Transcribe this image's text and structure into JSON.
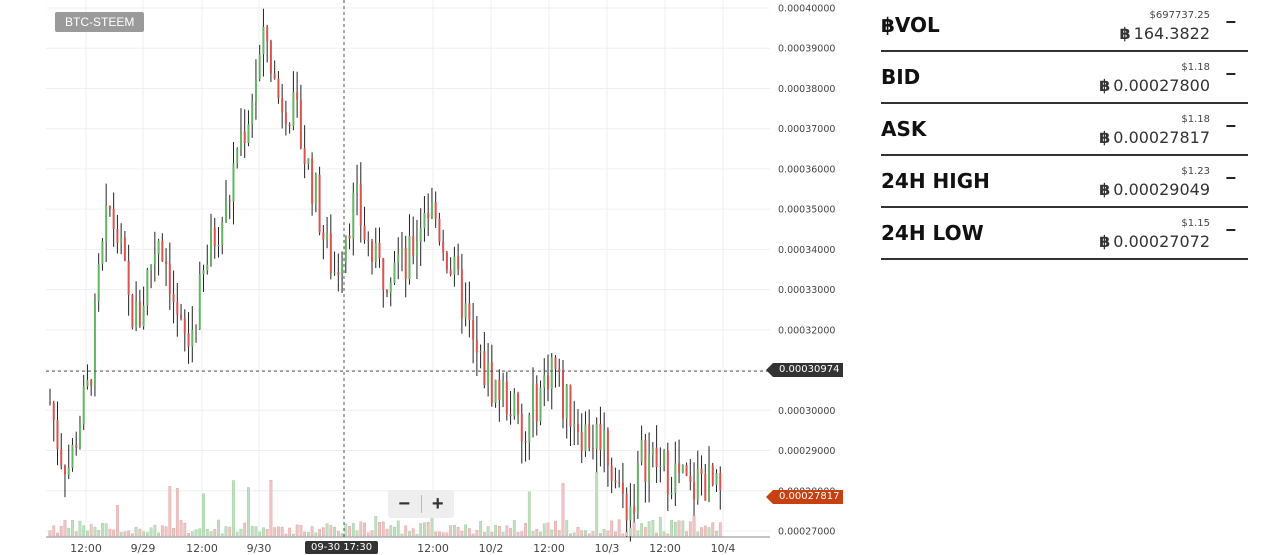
{
  "chart": {
    "pair_label": "BTC-STEEM",
    "crosshair_price": "0.00030974",
    "last_price": "0.00027817",
    "crosshair_time": "09-30 17:30",
    "zoom_out_label": "−",
    "zoom_in_label": "+",
    "colors": {
      "up": "#66b266",
      "down": "#d9534f",
      "wick": "#222222",
      "grid": "#efefef",
      "vol_up": "#bfe0bf",
      "vol_down": "#f0c4c4",
      "last": "#c8400f"
    }
  },
  "chart_data": {
    "type": "candlestick",
    "title": "",
    "x_ticks": [
      "12:00",
      "9/29",
      "12:00",
      "9/30",
      "12:00",
      "10/2",
      "12:00",
      "10/3",
      "12:00",
      "10/4"
    ],
    "y_ticks": [
      "0.00040000",
      "0.00039000",
      "0.00038000",
      "0.00037000",
      "0.00036000",
      "0.00035000",
      "0.00034000",
      "0.00033000",
      "0.00032000",
      "0.00031000",
      "0.00030000",
      "0.00029000",
      "0.00028000",
      "0.00027000"
    ],
    "ylim": [
      0.00027,
      0.0004
    ],
    "close_path": [
      0.000302,
      0.00029,
      0.000286,
      0.000298,
      0.000306,
      0.000334,
      0.00035,
      0.000342,
      0.000326,
      0.000322,
      0.000335,
      0.000344,
      0.000336,
      0.00032,
      0.000316,
      0.000326,
      0.000338,
      0.000346,
      0.00035,
      0.000366,
      0.000372,
      0.000385,
      0.000393,
      0.000378,
      0.000377,
      0.000372,
      0.000362,
      0.000353,
      0.00034,
      0.000334,
      0.000346,
      0.000352,
      0.000343,
      0.000336,
      0.000334,
      0.00034,
      0.000334,
      0.000342,
      0.000351,
      0.000349,
      0.000341,
      0.000333,
      0.000326,
      0.000314,
      0.00031,
      0.000306,
      0.000304,
      0.000301,
      0.000289,
      0.000301,
      0.000306,
      0.000313,
      0.000302,
      0.0003,
      0.000295,
      0.000293,
      0.000295,
      0.000286,
      0.000278,
      0.000276,
      0.000288,
      0.000288,
      0.000285,
      0.000285,
      0.000283,
      0.000279,
      0.000284,
      0.000281,
      0.000278
    ]
  },
  "stats": [
    {
      "label": "฿VOL",
      "usd": "$697737.25",
      "btc_symbol": "฿",
      "btc": "164.3822",
      "toggle": "−"
    },
    {
      "label": "BID",
      "usd": "$1.18",
      "btc_symbol": "฿",
      "btc": "0.00027800",
      "toggle": "−"
    },
    {
      "label": "ASK",
      "usd": "$1.18",
      "btc_symbol": "฿",
      "btc": "0.00027817",
      "toggle": "−"
    },
    {
      "label": "24H HIGH",
      "usd": "$1.23",
      "btc_symbol": "฿",
      "btc": "0.00029049",
      "toggle": "−"
    },
    {
      "label": "24H LOW",
      "usd": "$1.15",
      "btc_symbol": "฿",
      "btc": "0.00027072",
      "toggle": "−"
    }
  ]
}
